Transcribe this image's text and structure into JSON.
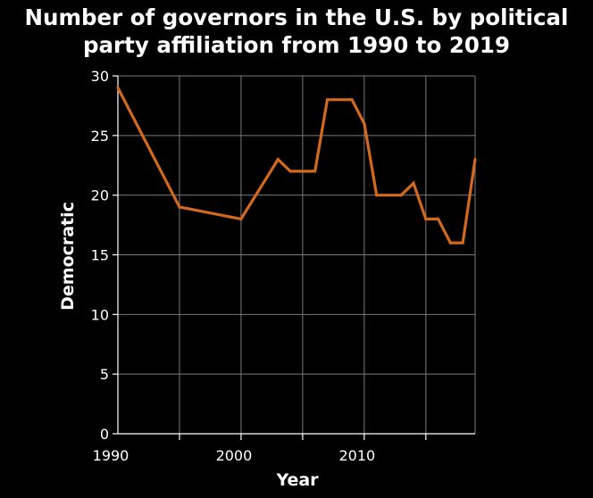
{
  "colors": {
    "background": "#000000",
    "text": "#ffffff",
    "grid": "#7a7a7a",
    "series": "#d2691e"
  },
  "chart_data": {
    "type": "line",
    "title": "Number of governors in the U.S. by political party affiliation from 1990 to 2019",
    "xlabel": "Year",
    "ylabel": "Democratic",
    "xlim": [
      1990,
      2019
    ],
    "ylim": [
      0,
      30
    ],
    "xticks": [
      1990,
      2000,
      2010
    ],
    "yticks": [
      0,
      5,
      10,
      15,
      20,
      25,
      30
    ],
    "grid": true,
    "legend": "none",
    "series": [
      {
        "x": [
          1990,
          1995,
          2000,
          2003,
          2004,
          2006,
          2007,
          2009,
          2010,
          2011,
          2013,
          2014,
          2015,
          2016,
          2017,
          2018,
          2019
        ],
        "y": [
          29,
          19,
          18,
          23,
          22,
          22,
          28,
          28,
          26,
          20,
          20,
          21,
          18,
          18,
          16,
          16,
          23
        ]
      }
    ]
  }
}
